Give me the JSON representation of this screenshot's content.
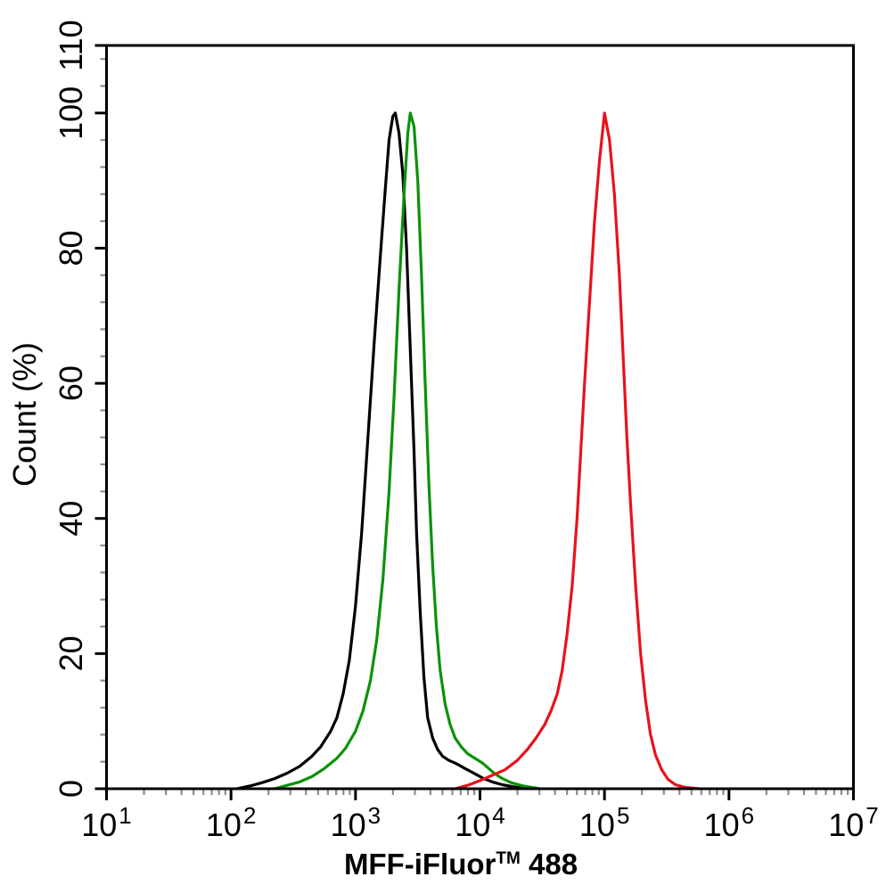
{
  "figure": {
    "background_color": "#ffffff",
    "axis_color": "#000000",
    "minor_tick_color": "#8c8c8c",
    "x_axis": {
      "title_prefix": "MFF-iFluor",
      "title_trademark": "TM",
      "title_suffix": " 488",
      "scale": "log10",
      "tick_base": "10",
      "major_exponents": [
        1,
        2,
        3,
        4,
        5,
        6,
        7
      ],
      "minor_mantissas": [
        2,
        3,
        4,
        5,
        6,
        7,
        8,
        9
      ]
    },
    "y_axis": {
      "title": "Count  (%)",
      "min": 0,
      "max": 110,
      "major_ticks": [
        0,
        20,
        40,
        60,
        80,
        100,
        110
      ],
      "minor_tick_step": 4
    }
  },
  "chart_data": {
    "type": "line",
    "subtype": "flow-cytometry-histogram-overlay",
    "title": "",
    "xlabel": "MFF-iFluor™ 488",
    "ylabel": "Count (%)",
    "x_scale": "log10",
    "xlim": [
      10,
      10000000
    ],
    "ylim": [
      0,
      110
    ],
    "grid": false,
    "legend": "none",
    "series": [
      {
        "name": "curve-black",
        "color": "#000000",
        "peak_x": 2000,
        "peak_y": 100,
        "points_log10x_pct": [
          [
            2.05,
            0
          ],
          [
            2.15,
            0.4
          ],
          [
            2.25,
            0.9
          ],
          [
            2.35,
            1.5
          ],
          [
            2.45,
            2.3
          ],
          [
            2.55,
            3.3
          ],
          [
            2.65,
            4.8
          ],
          [
            2.72,
            6.2
          ],
          [
            2.8,
            8.5
          ],
          [
            2.85,
            10.5
          ],
          [
            2.9,
            14
          ],
          [
            2.95,
            19
          ],
          [
            3.0,
            27
          ],
          [
            3.05,
            38
          ],
          [
            3.1,
            52
          ],
          [
            3.15,
            66
          ],
          [
            3.2,
            79
          ],
          [
            3.24,
            89
          ],
          [
            3.27,
            96
          ],
          [
            3.3,
            99.5
          ],
          [
            3.32,
            100
          ],
          [
            3.35,
            97
          ],
          [
            3.38,
            91
          ],
          [
            3.41,
            80
          ],
          [
            3.44,
            65
          ],
          [
            3.47,
            50
          ],
          [
            3.49,
            38
          ],
          [
            3.52,
            26
          ],
          [
            3.55,
            16.5
          ],
          [
            3.58,
            10.5
          ],
          [
            3.62,
            7.5
          ],
          [
            3.66,
            5.8
          ],
          [
            3.7,
            4.8
          ],
          [
            3.75,
            4.2
          ],
          [
            3.8,
            3.8
          ],
          [
            3.84,
            3.4
          ],
          [
            3.88,
            3.0
          ],
          [
            3.93,
            2.5
          ],
          [
            3.98,
            2.0
          ],
          [
            4.03,
            1.5
          ],
          [
            4.1,
            1.0
          ],
          [
            4.18,
            0.6
          ],
          [
            4.28,
            0.25
          ],
          [
            4.42,
            0
          ]
        ]
      },
      {
        "name": "curve-green",
        "color": "#0a9208",
        "peak_x": 2700,
        "peak_y": 100,
        "points_log10x_pct": [
          [
            2.35,
            0
          ],
          [
            2.45,
            0.5
          ],
          [
            2.55,
            1.0
          ],
          [
            2.65,
            1.8
          ],
          [
            2.75,
            3.0
          ],
          [
            2.85,
            4.5
          ],
          [
            2.92,
            6.0
          ],
          [
            3.0,
            8.5
          ],
          [
            3.06,
            11.5
          ],
          [
            3.12,
            16
          ],
          [
            3.17,
            22
          ],
          [
            3.22,
            31
          ],
          [
            3.27,
            44
          ],
          [
            3.31,
            58
          ],
          [
            3.35,
            74
          ],
          [
            3.39,
            88
          ],
          [
            3.42,
            97
          ],
          [
            3.44,
            100
          ],
          [
            3.47,
            98
          ],
          [
            3.5,
            90
          ],
          [
            3.53,
            76
          ],
          [
            3.56,
            60
          ],
          [
            3.59,
            45
          ],
          [
            3.62,
            33
          ],
          [
            3.65,
            24
          ],
          [
            3.68,
            17.5
          ],
          [
            3.72,
            12.5
          ],
          [
            3.76,
            9.5
          ],
          [
            3.8,
            7.5
          ],
          [
            3.85,
            6.2
          ],
          [
            3.9,
            5.2
          ],
          [
            3.96,
            4.5
          ],
          [
            4.02,
            3.8
          ],
          [
            4.07,
            3.0
          ],
          [
            4.12,
            2.2
          ],
          [
            4.18,
            1.5
          ],
          [
            4.25,
            0.9
          ],
          [
            4.35,
            0.4
          ],
          [
            4.48,
            0
          ]
        ]
      },
      {
        "name": "curve-red",
        "color": "#e8121b",
        "peak_x": 100000,
        "peak_y": 100,
        "points_log10x_pct": [
          [
            3.8,
            0
          ],
          [
            3.9,
            0.5
          ],
          [
            4.0,
            1.2
          ],
          [
            4.1,
            2.0
          ],
          [
            4.2,
            2.8
          ],
          [
            4.3,
            4.2
          ],
          [
            4.38,
            5.8
          ],
          [
            4.45,
            7.5
          ],
          [
            4.52,
            9.5
          ],
          [
            4.57,
            11.5
          ],
          [
            4.62,
            14
          ],
          [
            4.66,
            17.5
          ],
          [
            4.7,
            23
          ],
          [
            4.74,
            30
          ],
          [
            4.78,
            40
          ],
          [
            4.81,
            50
          ],
          [
            4.84,
            60
          ],
          [
            4.88,
            72
          ],
          [
            4.92,
            84
          ],
          [
            4.96,
            93
          ],
          [
            5.0,
            100
          ],
          [
            5.04,
            96
          ],
          [
            5.08,
            88
          ],
          [
            5.12,
            76
          ],
          [
            5.15,
            64
          ],
          [
            5.18,
            52
          ],
          [
            5.21,
            42
          ],
          [
            5.25,
            30
          ],
          [
            5.29,
            20
          ],
          [
            5.33,
            13
          ],
          [
            5.37,
            8
          ],
          [
            5.41,
            5
          ],
          [
            5.46,
            2.8
          ],
          [
            5.51,
            1.4
          ],
          [
            5.57,
            0.6
          ],
          [
            5.65,
            0.2
          ],
          [
            5.76,
            0
          ]
        ]
      }
    ]
  }
}
